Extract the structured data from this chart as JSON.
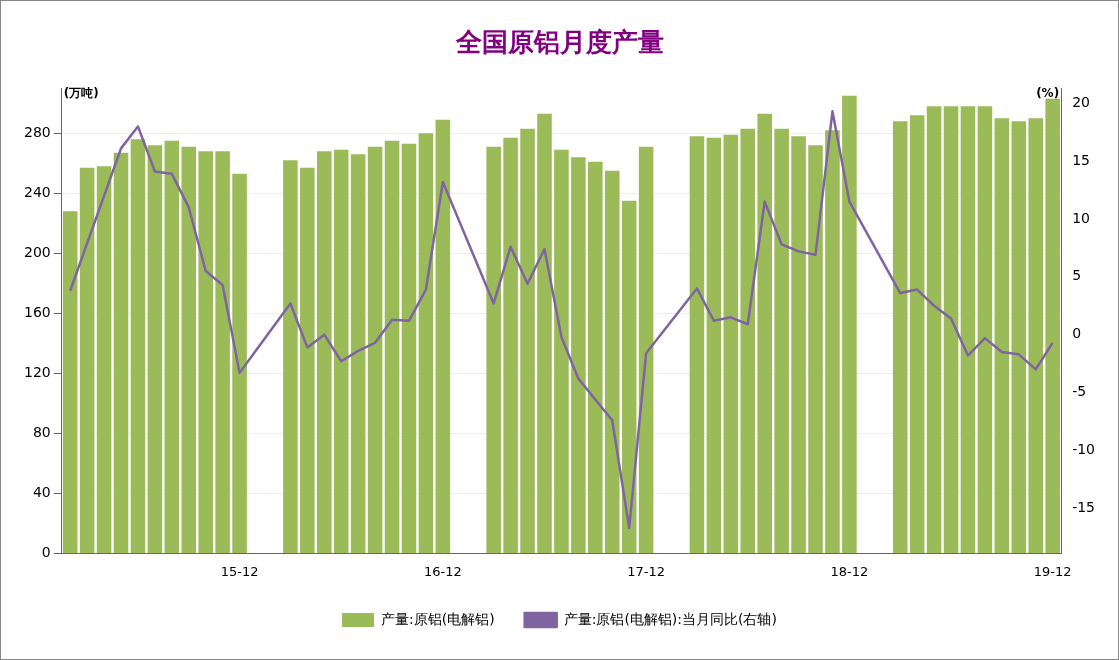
{
  "chart_data": {
    "type": "bar",
    "title": "全国原铝月度产量",
    "ylabel": "(万吨)",
    "y2label": "(%)",
    "categories": [
      null,
      null,
      null,
      null,
      null,
      null,
      null,
      null,
      null,
      null,
      "15-12",
      null,
      null,
      null,
      null,
      null,
      null,
      null,
      null,
      null,
      null,
      null,
      "16-12",
      null,
      null,
      null,
      null,
      null,
      null,
      null,
      null,
      null,
      null,
      null,
      "17-12",
      null,
      null,
      null,
      null,
      null,
      null,
      null,
      null,
      null,
      null,
      null,
      "18-12",
      null,
      null,
      null,
      null,
      null,
      null,
      null,
      null,
      null,
      null,
      null,
      "19-12"
    ],
    "series": [
      {
        "name": "产量:原铝(电解铝)",
        "color": "#9bbb59",
        "values": [
          228,
          257,
          258,
          267,
          276,
          272,
          275,
          271,
          268,
          268,
          253,
          null,
          null,
          262,
          257,
          268,
          269,
          266,
          271,
          275,
          273,
          280,
          289,
          null,
          null,
          271,
          277,
          283,
          293,
          269,
          264,
          261,
          255,
          235,
          271,
          null,
          null,
          278,
          277,
          279,
          283,
          293,
          283,
          278,
          272,
          282,
          305,
          null,
          null,
          288,
          292,
          298,
          298,
          298,
          298,
          290,
          288,
          290,
          303
        ]
      },
      {
        "name": "产量:原铝(电解铝):当月同比(右轴)",
        "type": "line",
        "axis": "y2",
        "color": "#8064a2",
        "values": [
          3.8,
          7.9,
          12.0,
          16.1,
          18.0,
          14.1,
          13.9,
          11.0,
          5.5,
          4.3,
          -3.3,
          null,
          null,
          2.7,
          -1.1,
          0,
          -2.3,
          -1.4,
          -0.7,
          1.3,
          1.2,
          3.9,
          13.2,
          null,
          null,
          2.7,
          7.6,
          4.4,
          7.4,
          -0.2,
          -3.8,
          -5.6,
          -7.4,
          -16.7,
          -1.6,
          null,
          null,
          4.0,
          1.2,
          1.5,
          0.9,
          11.5,
          7.8,
          7.2,
          6.9,
          19.3,
          11.5,
          null,
          null,
          3.6,
          3.9,
          2.5,
          1.4,
          -1.8,
          -0.3,
          -1.5,
          -1.7,
          -3.0,
          -0.7
        ]
      }
    ],
    "ylim": [
      0,
      310
    ],
    "yticks": [
      0,
      40,
      80,
      120,
      160,
      200,
      240,
      280
    ],
    "y2lim": [
      -18.9,
      21.3
    ],
    "y2ticks": [
      -15,
      -10,
      -5,
      0,
      5,
      10,
      15,
      20
    ],
    "grid": "y",
    "legend": "bottom",
    "marker": "none",
    "line_style": "solid"
  }
}
